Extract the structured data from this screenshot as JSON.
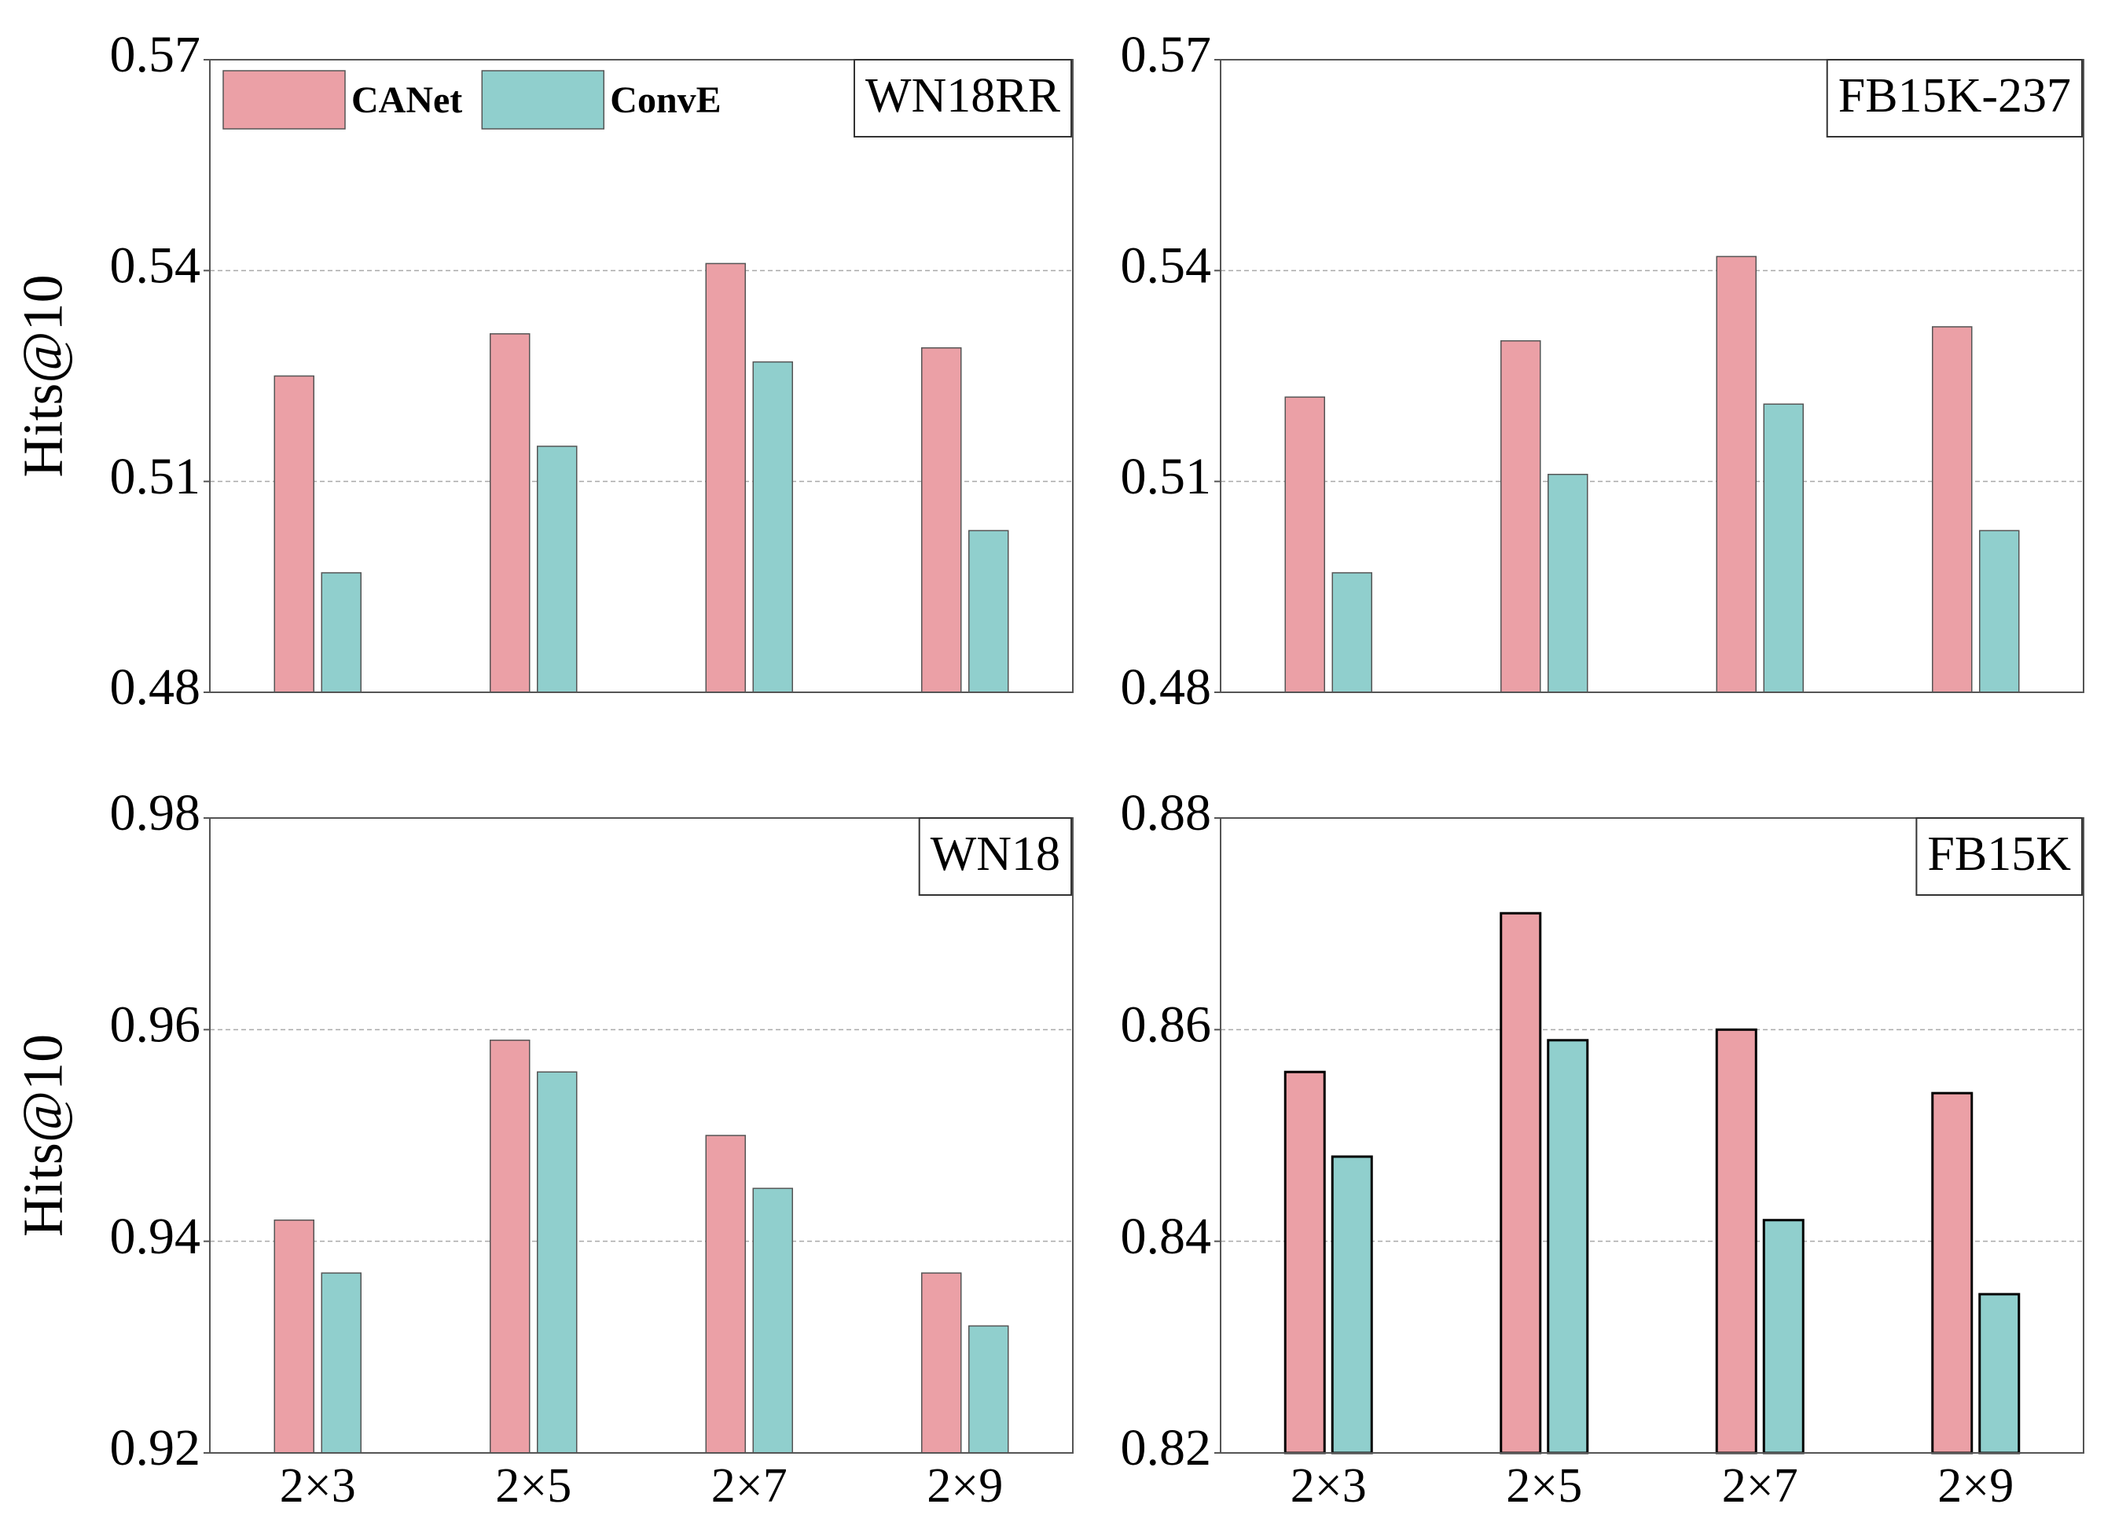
{
  "chart_data": [
    {
      "type": "bar",
      "title": "WN18RR",
      "ylabel": "Hits@10",
      "categories": [
        null,
        null,
        null,
        null
      ],
      "series": [
        {
          "name": "CANet",
          "color": "#eba0a6",
          "values": [
            0.525,
            0.531,
            0.541,
            0.529
          ]
        },
        {
          "name": "ConvE",
          "color": "#90cfcd",
          "values": [
            0.497,
            0.515,
            0.527,
            0.503
          ]
        }
      ],
      "ylim": [
        0.48,
        0.57
      ],
      "yticks": [
        0.48,
        0.51,
        0.54,
        0.57
      ],
      "grid": true,
      "legend": "upper left",
      "edgecolor": "#555555"
    },
    {
      "type": "bar",
      "title": "FB15K-237",
      "categories": [
        null,
        null,
        null,
        null
      ],
      "series": [
        {
          "color": "#eba0a6",
          "values": [
            0.522,
            0.53,
            0.542,
            0.532
          ]
        },
        {
          "color": "#90cfcd",
          "values": [
            0.497,
            0.511,
            0.521,
            0.503
          ]
        }
      ],
      "ylim": [
        0.48,
        0.57
      ],
      "yticks": [
        0.48,
        0.51,
        0.54,
        0.57
      ],
      "grid": true,
      "edgecolor": "#555555"
    },
    {
      "type": "bar",
      "title": "WN18",
      "ylabel": "Hits@10",
      "categories": [
        "2×3",
        "2×5",
        "2×7",
        "2×9"
      ],
      "series": [
        {
          "color": "#eba0a6",
          "values": [
            0.942,
            0.959,
            0.95,
            0.937
          ]
        },
        {
          "color": "#90cfcd",
          "values": [
            0.937,
            0.956,
            0.945,
            0.932
          ]
        }
      ],
      "ylim": [
        0.92,
        0.98
      ],
      "yticks": [
        0.92,
        0.94,
        0.96,
        0.98
      ],
      "grid": true,
      "edgecolor": "#555555"
    },
    {
      "type": "bar",
      "title": "FB15K",
      "categories": [
        "2×3",
        "2×5",
        "2×7",
        "2×9"
      ],
      "series": [
        {
          "color": "#eba0a6",
          "values": [
            0.856,
            0.871,
            0.86,
            0.854
          ]
        },
        {
          "color": "#90cfcd",
          "values": [
            0.848,
            0.859,
            0.842,
            0.835
          ]
        }
      ],
      "ylim": [
        0.82,
        0.88
      ],
      "yticks": [
        0.82,
        0.84,
        0.86,
        0.88
      ],
      "grid": true,
      "edgecolor": "#000000"
    }
  ]
}
